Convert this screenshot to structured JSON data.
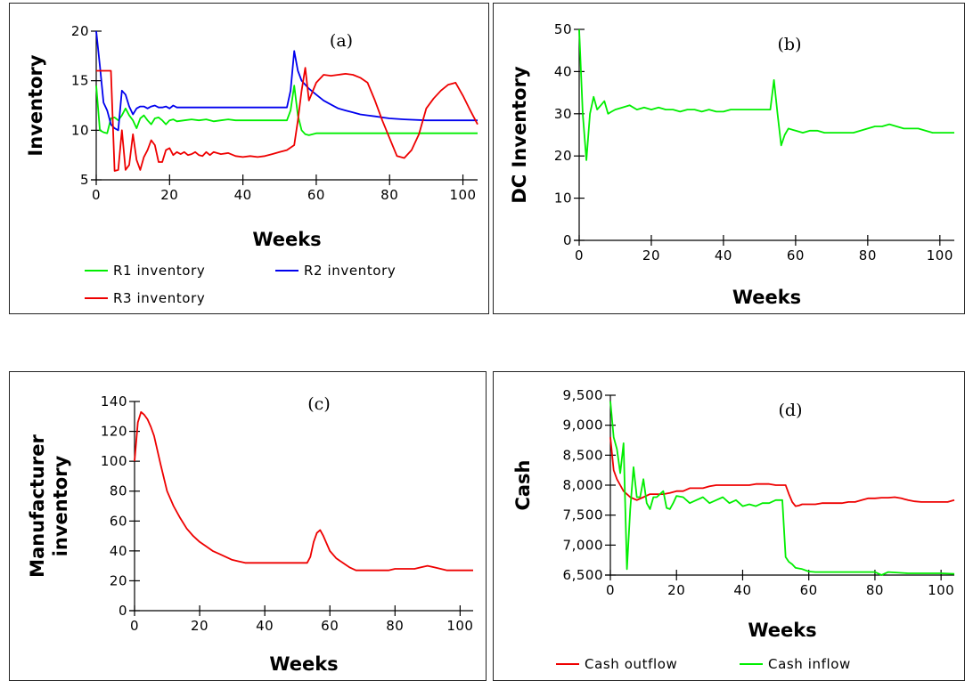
{
  "chart_data": [
    {
      "type": "line",
      "panel_label": "(a)",
      "xlabel": "Weeks",
      "ylabel": "Inventory",
      "xlim": [
        0,
        104
      ],
      "ylim": [
        5,
        20
      ],
      "xticks": [
        0,
        20,
        40,
        60,
        80,
        100
      ],
      "yticks": [
        5,
        10,
        15,
        20
      ],
      "legend_position": "bottom",
      "series": [
        {
          "name": "R1 inventory",
          "color": "#00ee00",
          "x": [
            0,
            1,
            2,
            3,
            4,
            5,
            6,
            7,
            8,
            9,
            10,
            11,
            12,
            13,
            14,
            15,
            16,
            17,
            18,
            19,
            20,
            21,
            22,
            24,
            26,
            28,
            30,
            32,
            34,
            36,
            38,
            40,
            42,
            44,
            46,
            48,
            50,
            52,
            53,
            54,
            55,
            56,
            57,
            58,
            60,
            62,
            64,
            70,
            80,
            90,
            100,
            104
          ],
          "y": [
            14.5,
            10,
            9.8,
            9.7,
            11.2,
            11.3,
            11,
            11.5,
            12.2,
            11.5,
            11,
            10.2,
            11.2,
            11.5,
            11,
            10.6,
            11.2,
            11.3,
            11,
            10.6,
            11,
            11.1,
            10.9,
            11,
            11.1,
            11,
            11.1,
            10.9,
            11,
            11.1,
            11,
            11,
            11,
            11,
            11,
            11,
            11,
            11,
            12,
            14.5,
            11.5,
            10,
            9.6,
            9.5,
            9.7,
            9.7,
            9.7,
            9.7,
            9.7,
            9.7,
            9.7,
            9.7
          ]
        },
        {
          "name": "R2 inventory",
          "color": "#0000ee",
          "x": [
            0,
            1,
            2,
            3,
            4,
            5,
            6,
            7,
            8,
            9,
            10,
            11,
            12,
            13,
            14,
            15,
            16,
            17,
            18,
            19,
            20,
            21,
            22,
            30,
            40,
            50,
            52,
            53,
            54,
            55,
            56,
            58,
            60,
            62,
            64,
            66,
            68,
            70,
            72,
            74,
            76,
            78,
            80,
            84,
            90,
            100,
            104
          ],
          "y": [
            20,
            16.5,
            12.8,
            12,
            10.6,
            10.2,
            10,
            14,
            13.6,
            12.4,
            11.6,
            12.2,
            12.4,
            12.4,
            12.2,
            12.4,
            12.5,
            12.3,
            12.3,
            12.4,
            12.2,
            12.5,
            12.3,
            12.3,
            12.3,
            12.3,
            12.3,
            14,
            18,
            16,
            15,
            14.2,
            13.6,
            13,
            12.6,
            12.2,
            12,
            11.8,
            11.6,
            11.5,
            11.4,
            11.3,
            11.2,
            11.1,
            11,
            11,
            11
          ]
        },
        {
          "name": "R3 inventory",
          "color": "#ee0000",
          "x": [
            0,
            1,
            2,
            3,
            4,
            5,
            6,
            7,
            8,
            9,
            10,
            11,
            12,
            13,
            14,
            15,
            16,
            17,
            18,
            19,
            20,
            21,
            22,
            23,
            24,
            25,
            26,
            27,
            28,
            29,
            30,
            31,
            32,
            34,
            36,
            38,
            40,
            42,
            44,
            46,
            48,
            50,
            52,
            54,
            55,
            56,
            57,
            58,
            60,
            62,
            64,
            66,
            68,
            70,
            72,
            74,
            76,
            78,
            80,
            82,
            84,
            86,
            88,
            90,
            92,
            94,
            96,
            98,
            100,
            102,
            104
          ],
          "y": [
            16,
            16,
            16,
            16,
            16,
            5.9,
            6,
            10,
            6,
            6.5,
            9.6,
            7,
            6,
            7.3,
            8,
            9,
            8.5,
            6.8,
            6.8,
            8,
            8.2,
            7.5,
            7.8,
            7.6,
            7.8,
            7.5,
            7.6,
            7.8,
            7.5,
            7.4,
            7.8,
            7.5,
            7.8,
            7.6,
            7.7,
            7.4,
            7.3,
            7.4,
            7.3,
            7.4,
            7.6,
            7.8,
            8,
            8.5,
            11,
            14,
            16.3,
            13,
            14.8,
            15.6,
            15.5,
            15.6,
            15.7,
            15.6,
            15.3,
            14.8,
            13,
            11,
            9.2,
            7.4,
            7.2,
            8,
            9.6,
            12.2,
            13.2,
            14,
            14.6,
            14.8,
            13.5,
            12,
            10.6
          ]
        }
      ]
    },
    {
      "type": "line",
      "panel_label": "(b)",
      "xlabel": "Weeks",
      "ylabel": "DC Inventory",
      "xlim": [
        0,
        104
      ],
      "ylim": [
        0,
        50
      ],
      "xticks": [
        0,
        20,
        40,
        60,
        80,
        100
      ],
      "yticks": [
        0,
        10,
        20,
        30,
        40,
        50
      ],
      "series": [
        {
          "name": "",
          "color": "#00ee00",
          "x": [
            0,
            1,
            2,
            3,
            4,
            5,
            6,
            7,
            8,
            9,
            10,
            12,
            14,
            16,
            18,
            20,
            22,
            24,
            26,
            28,
            30,
            32,
            34,
            36,
            38,
            40,
            42,
            44,
            46,
            48,
            50,
            52,
            53,
            54,
            55,
            56,
            57,
            58,
            60,
            62,
            64,
            66,
            68,
            70,
            72,
            74,
            76,
            78,
            80,
            82,
            84,
            86,
            88,
            90,
            92,
            94,
            96,
            98,
            100,
            102,
            104
          ],
          "y": [
            50,
            30,
            19,
            30,
            34,
            31,
            32,
            33,
            30,
            30.5,
            31,
            31.5,
            32,
            31,
            31.5,
            31,
            31.5,
            31,
            31,
            30.5,
            31,
            31,
            30.5,
            31,
            30.5,
            30.5,
            31,
            31,
            31,
            31,
            31,
            31,
            31,
            38,
            30,
            22.5,
            25,
            26.5,
            26,
            25.5,
            26,
            26,
            25.5,
            25.5,
            25.5,
            25.5,
            25.5,
            26,
            26.5,
            27,
            27,
            27.5,
            27,
            26.5,
            26.5,
            26.5,
            26,
            25.5,
            25.5,
            25.5,
            25.5
          ]
        }
      ]
    },
    {
      "type": "line",
      "panel_label": "(c)",
      "xlabel": "Weeks",
      "ylabel": "Manufacturer inventory",
      "xlim": [
        0,
        104
      ],
      "ylim": [
        0,
        140
      ],
      "xticks": [
        0,
        20,
        40,
        60,
        80,
        100
      ],
      "yticks": [
        0,
        20,
        40,
        60,
        80,
        100,
        120,
        140
      ],
      "series": [
        {
          "name": "",
          "color": "#ee0000",
          "x": [
            0,
            1,
            2,
            3,
            4,
            5,
            6,
            8,
            10,
            12,
            14,
            16,
            18,
            20,
            22,
            24,
            26,
            28,
            30,
            32,
            34,
            36,
            38,
            40,
            42,
            44,
            46,
            48,
            50,
            52,
            53,
            54,
            55,
            56,
            57,
            58,
            60,
            62,
            64,
            66,
            68,
            70,
            72,
            74,
            76,
            78,
            80,
            82,
            84,
            86,
            88,
            90,
            92,
            94,
            96,
            98,
            100,
            102,
            104
          ],
          "y": [
            100,
            126,
            133,
            131,
            128,
            123,
            117,
            98,
            80,
            70,
            62,
            55,
            50,
            46,
            43,
            40,
            38,
            36,
            34,
            33,
            32,
            32,
            32,
            32,
            32,
            32,
            32,
            32,
            32,
            32,
            32,
            36,
            46,
            52,
            54,
            50,
            40,
            35,
            32,
            29,
            27,
            27,
            27,
            27,
            27,
            27,
            28,
            28,
            28,
            28,
            29,
            30,
            29,
            28,
            27,
            27,
            27,
            27,
            27
          ]
        }
      ]
    },
    {
      "type": "line",
      "panel_label": "(d)",
      "xlabel": "Weeks",
      "ylabel": "Cash",
      "xlim": [
        0,
        104
      ],
      "ylim": [
        6500,
        9500
      ],
      "xticks": [
        0,
        20,
        40,
        60,
        80,
        100
      ],
      "yticks": [
        6500,
        7000,
        7500,
        8000,
        8500,
        9000,
        9500
      ],
      "ytick_labels": [
        "6,500",
        "7,000",
        "7,500",
        "8,000",
        "8,500",
        "9,000",
        "9,500"
      ],
      "legend_position": "bottom",
      "series": [
        {
          "name": "Cash outflow",
          "color": "#ee0000",
          "x": [
            0,
            1,
            2,
            3,
            4,
            5,
            6,
            8,
            10,
            12,
            14,
            16,
            18,
            20,
            22,
            24,
            26,
            28,
            30,
            32,
            34,
            36,
            38,
            40,
            42,
            44,
            46,
            48,
            50,
            52,
            53,
            54,
            55,
            56,
            57,
            58,
            60,
            62,
            64,
            66,
            68,
            70,
            72,
            74,
            76,
            78,
            80,
            82,
            84,
            86,
            88,
            90,
            92,
            94,
            96,
            98,
            100,
            102,
            104
          ],
          "y": [
            8800,
            8250,
            8100,
            8000,
            7900,
            7850,
            7800,
            7750,
            7800,
            7850,
            7850,
            7850,
            7870,
            7900,
            7900,
            7950,
            7950,
            7950,
            7980,
            8000,
            8000,
            8000,
            8000,
            8000,
            8000,
            8020,
            8020,
            8020,
            8000,
            8000,
            8000,
            7850,
            7720,
            7650,
            7660,
            7680,
            7680,
            7680,
            7700,
            7700,
            7700,
            7700,
            7720,
            7720,
            7750,
            7780,
            7780,
            7790,
            7790,
            7800,
            7780,
            7750,
            7730,
            7720,
            7720,
            7720,
            7720,
            7720,
            7750
          ]
        },
        {
          "name": "Cash inflow",
          "color": "#00ee00",
          "x": [
            0,
            1,
            2,
            3,
            4,
            5,
            6,
            7,
            8,
            9,
            10,
            11,
            12,
            13,
            14,
            15,
            16,
            17,
            18,
            19,
            20,
            22,
            24,
            26,
            28,
            30,
            32,
            34,
            36,
            38,
            40,
            42,
            44,
            46,
            48,
            50,
            52,
            53,
            54,
            55,
            56,
            58,
            60,
            62,
            64,
            70,
            80,
            82,
            84,
            90,
            100,
            104
          ],
          "y": [
            9400,
            8800,
            8600,
            8200,
            8700,
            6600,
            7600,
            8300,
            7800,
            7800,
            8100,
            7700,
            7600,
            7800,
            7800,
            7850,
            7900,
            7620,
            7600,
            7700,
            7820,
            7800,
            7700,
            7750,
            7800,
            7700,
            7750,
            7800,
            7700,
            7750,
            7650,
            7680,
            7650,
            7700,
            7700,
            7750,
            7750,
            6800,
            6720,
            6680,
            6620,
            6600,
            6560,
            6550,
            6550,
            6550,
            6550,
            6500,
            6550,
            6530,
            6530,
            6520
          ]
        }
      ]
    }
  ]
}
